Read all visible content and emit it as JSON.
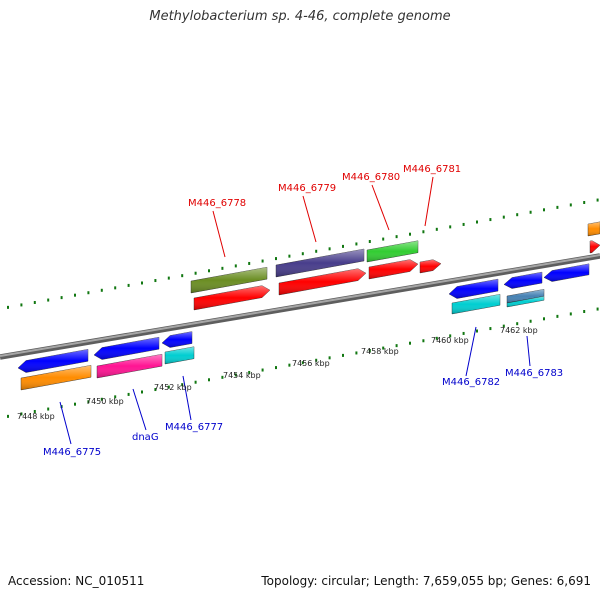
{
  "title": "Methylobacterium sp. 4-46, complete genome",
  "footer": {
    "accession": "Accession: NC_010511",
    "summary": "Topology: circular; Length: 7,659,055 bp; Genes: 6,691"
  },
  "ticks": [
    {
      "label": "7448 kbp"
    },
    {
      "label": "7450 kbp"
    },
    {
      "label": "7452 kbp"
    },
    {
      "label": "7454 kbp"
    },
    {
      "label": "7456 kbp"
    },
    {
      "label": "7458 kbp"
    },
    {
      "label": "7460 kbp"
    },
    {
      "label": "7462 kbp"
    }
  ],
  "forward_gene_labels": [
    {
      "text": "M446_6778"
    },
    {
      "text": "M446_6779"
    },
    {
      "text": "M446_6780"
    },
    {
      "text": "M446_6781"
    }
  ],
  "reverse_gene_labels": [
    {
      "text": "M446_6775"
    },
    {
      "text": "dnaG"
    },
    {
      "text": "M446_6777"
    },
    {
      "text": "M446_6782"
    },
    {
      "text": "M446_6783"
    }
  ],
  "colors": {
    "backbone": "#808080",
    "forward_label": "#e00000",
    "reverse_label": "#0000cc",
    "dots": "#117711",
    "cds_forward": "#ff0000",
    "cds_reverse": "#0000ff",
    "cog_olive": "#6b8e23",
    "cog_slate": "#483d8b",
    "cog_green": "#32cd32",
    "cog_orange": "#ff8c00",
    "cog_pink": "#ff1493",
    "cog_cyan": "#00ced1",
    "cog_steel": "#4682b4"
  }
}
